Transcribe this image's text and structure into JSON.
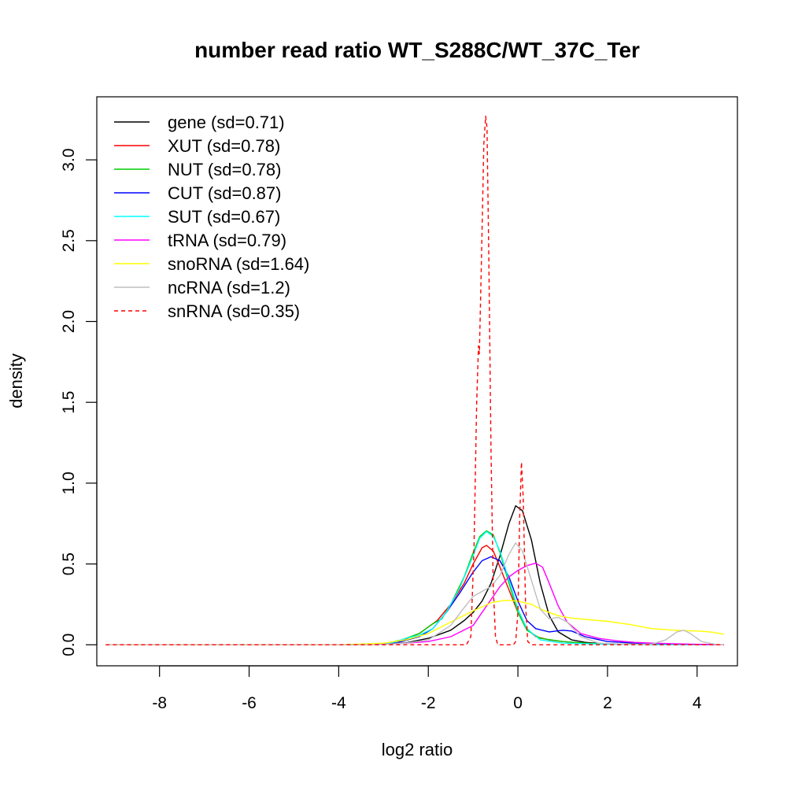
{
  "chart_data": {
    "type": "line",
    "title": "number read ratio WT_S288C/WT_37C_Ter",
    "xlabel": "log2 ratio",
    "ylabel": "density",
    "xlim": [
      -9.4,
      4.9
    ],
    "ylim": [
      -0.13,
      3.39
    ],
    "x_ticks": [
      {
        "value": -8,
        "label": "-8"
      },
      {
        "value": -6,
        "label": "-6"
      },
      {
        "value": -4,
        "label": "-4"
      },
      {
        "value": -2,
        "label": "-2"
      },
      {
        "value": 0,
        "label": "0"
      },
      {
        "value": 2,
        "label": "2"
      },
      {
        "value": 4,
        "label": "4"
      }
    ],
    "y_ticks": [
      {
        "value": 0.0,
        "label": "0.0"
      },
      {
        "value": 0.5,
        "label": "0.5"
      },
      {
        "value": 1.0,
        "label": "1.0"
      },
      {
        "value": 1.5,
        "label": "1.5"
      },
      {
        "value": 2.0,
        "label": "2.0"
      },
      {
        "value": 2.5,
        "label": "2.5"
      },
      {
        "value": 3.0,
        "label": "3.0"
      }
    ],
    "legend_position": "top-left",
    "series": [
      {
        "name": "gene (sd=0.71)",
        "color": "#000000",
        "dashed": false,
        "points": [
          [
            -9.2,
            0
          ],
          [
            -4,
            0
          ],
          [
            -3,
            0.003
          ],
          [
            -2.5,
            0.012
          ],
          [
            -2,
            0.04
          ],
          [
            -1.5,
            0.09
          ],
          [
            -1.2,
            0.15
          ],
          [
            -1.0,
            0.2
          ],
          [
            -0.8,
            0.27
          ],
          [
            -0.6,
            0.38
          ],
          [
            -0.4,
            0.55
          ],
          [
            -0.2,
            0.75
          ],
          [
            -0.05,
            0.86
          ],
          [
            0.1,
            0.83
          ],
          [
            0.3,
            0.65
          ],
          [
            0.5,
            0.38
          ],
          [
            0.7,
            0.18
          ],
          [
            0.9,
            0.08
          ],
          [
            1.2,
            0.03
          ],
          [
            1.5,
            0.015
          ],
          [
            2,
            0.005
          ],
          [
            3,
            0.002
          ],
          [
            4.6,
            0
          ]
        ]
      },
      {
        "name": "XUT (sd=0.78)",
        "color": "#ff0000",
        "dashed": false,
        "points": [
          [
            -9.2,
            0
          ],
          [
            -4,
            0
          ],
          [
            -3,
            0.005
          ],
          [
            -2.6,
            0.025
          ],
          [
            -2.2,
            0.07
          ],
          [
            -1.8,
            0.15
          ],
          [
            -1.5,
            0.25
          ],
          [
            -1.2,
            0.38
          ],
          [
            -1.0,
            0.5
          ],
          [
            -0.8,
            0.6
          ],
          [
            -0.7,
            0.615
          ],
          [
            -0.55,
            0.58
          ],
          [
            -0.4,
            0.48
          ],
          [
            -0.2,
            0.34
          ],
          [
            0,
            0.2
          ],
          [
            0.2,
            0.1
          ],
          [
            0.4,
            0.05
          ],
          [
            0.7,
            0.03
          ],
          [
            1.0,
            0.02
          ],
          [
            1.5,
            0.01
          ],
          [
            2,
            0.005
          ],
          [
            4.6,
            0
          ]
        ]
      },
      {
        "name": "NUT (sd=0.78)",
        "color": "#00cd00",
        "dashed": false,
        "points": [
          [
            -9.2,
            0
          ],
          [
            -4,
            0
          ],
          [
            -3,
            0.005
          ],
          [
            -2.6,
            0.03
          ],
          [
            -2.2,
            0.07
          ],
          [
            -1.9,
            0.13
          ],
          [
            -1.7,
            0.16
          ],
          [
            -1.5,
            0.25
          ],
          [
            -1.2,
            0.42
          ],
          [
            -1.0,
            0.57
          ],
          [
            -0.85,
            0.67
          ],
          [
            -0.7,
            0.705
          ],
          [
            -0.55,
            0.68
          ],
          [
            -0.4,
            0.57
          ],
          [
            -0.2,
            0.38
          ],
          [
            0,
            0.2
          ],
          [
            0.2,
            0.09
          ],
          [
            0.5,
            0.04
          ],
          [
            1.0,
            0.02
          ],
          [
            1.5,
            0.01
          ],
          [
            2,
            0.005
          ],
          [
            4.6,
            0
          ]
        ]
      },
      {
        "name": "CUT (sd=0.87)",
        "color": "#0000ff",
        "dashed": false,
        "points": [
          [
            -9.2,
            0
          ],
          [
            -4,
            0
          ],
          [
            -3,
            0.005
          ],
          [
            -2.6,
            0.02
          ],
          [
            -2.2,
            0.05
          ],
          [
            -1.9,
            0.1
          ],
          [
            -1.6,
            0.2
          ],
          [
            -1.3,
            0.32
          ],
          [
            -1.0,
            0.45
          ],
          [
            -0.8,
            0.52
          ],
          [
            -0.6,
            0.545
          ],
          [
            -0.4,
            0.52
          ],
          [
            -0.2,
            0.42
          ],
          [
            0,
            0.27
          ],
          [
            0.2,
            0.15
          ],
          [
            0.4,
            0.1
          ],
          [
            0.7,
            0.08
          ],
          [
            1.0,
            0.09
          ],
          [
            1.2,
            0.085
          ],
          [
            1.5,
            0.05
          ],
          [
            2,
            0.02
          ],
          [
            3,
            0.005
          ],
          [
            4.6,
            0
          ]
        ]
      },
      {
        "name": "SUT (sd=0.67)",
        "color": "#00ffff",
        "dashed": false,
        "points": [
          [
            -9.2,
            0
          ],
          [
            -4,
            0
          ],
          [
            -3,
            0.005
          ],
          [
            -2.7,
            0.02
          ],
          [
            -2.5,
            0.04
          ],
          [
            -2.2,
            0.06
          ],
          [
            -1.9,
            0.1
          ],
          [
            -1.6,
            0.2
          ],
          [
            -1.3,
            0.35
          ],
          [
            -1.0,
            0.55
          ],
          [
            -0.85,
            0.66
          ],
          [
            -0.7,
            0.7
          ],
          [
            -0.55,
            0.67
          ],
          [
            -0.4,
            0.58
          ],
          [
            -0.2,
            0.4
          ],
          [
            0,
            0.22
          ],
          [
            0.2,
            0.1
          ],
          [
            0.5,
            0.03
          ],
          [
            1.0,
            0.01
          ],
          [
            2,
            0.003
          ],
          [
            4.6,
            0
          ]
        ]
      },
      {
        "name": "tRNA (sd=0.79)",
        "color": "#ff00ff",
        "dashed": false,
        "points": [
          [
            -9.2,
            0
          ],
          [
            -4,
            0
          ],
          [
            -3,
            0.003
          ],
          [
            -2.5,
            0.01
          ],
          [
            -2,
            0.02
          ],
          [
            -1.5,
            0.05
          ],
          [
            -1.0,
            0.12
          ],
          [
            -0.8,
            0.2
          ],
          [
            -0.6,
            0.28
          ],
          [
            -0.4,
            0.36
          ],
          [
            -0.2,
            0.42
          ],
          [
            0,
            0.46
          ],
          [
            0.2,
            0.49
          ],
          [
            0.4,
            0.505
          ],
          [
            0.55,
            0.48
          ],
          [
            0.7,
            0.38
          ],
          [
            0.9,
            0.24
          ],
          [
            1.1,
            0.14
          ],
          [
            1.4,
            0.07
          ],
          [
            1.8,
            0.04
          ],
          [
            2.2,
            0.025
          ],
          [
            2.6,
            0.015
          ],
          [
            3,
            0.01
          ],
          [
            4,
            0.003
          ],
          [
            4.6,
            0
          ]
        ]
      },
      {
        "name": "snoRNA (sd=1.64)",
        "color": "#ffff00",
        "dashed": false,
        "points": [
          [
            -9.2,
            0
          ],
          [
            -4,
            0
          ],
          [
            -3,
            0.01
          ],
          [
            -2.5,
            0.03
          ],
          [
            -2,
            0.07
          ],
          [
            -1.5,
            0.14
          ],
          [
            -1.0,
            0.21
          ],
          [
            -0.6,
            0.26
          ],
          [
            -0.3,
            0.275
          ],
          [
            0,
            0.27
          ],
          [
            0.3,
            0.25
          ],
          [
            0.6,
            0.21
          ],
          [
            0.9,
            0.18
          ],
          [
            1.2,
            0.165
          ],
          [
            1.6,
            0.155
          ],
          [
            2,
            0.145
          ],
          [
            2.5,
            0.125
          ],
          [
            3,
            0.1
          ],
          [
            3.5,
            0.09
          ],
          [
            4,
            0.085
          ],
          [
            4.3,
            0.08
          ],
          [
            4.6,
            0.065
          ]
        ]
      },
      {
        "name": "ncRNA (sd=1.2)",
        "color": "#bebebe",
        "dashed": false,
        "points": [
          [
            -9.2,
            0
          ],
          [
            -4,
            0
          ],
          [
            -3,
            0.002
          ],
          [
            -2.5,
            0.01
          ],
          [
            -2,
            0.03
          ],
          [
            -1.5,
            0.12
          ],
          [
            -1.2,
            0.23
          ],
          [
            -1.0,
            0.3
          ],
          [
            -0.8,
            0.33
          ],
          [
            -0.6,
            0.36
          ],
          [
            -0.4,
            0.43
          ],
          [
            -0.2,
            0.56
          ],
          [
            -0.05,
            0.63
          ],
          [
            0.1,
            0.58
          ],
          [
            0.3,
            0.4
          ],
          [
            0.5,
            0.22
          ],
          [
            0.7,
            0.16
          ],
          [
            0.9,
            0.17
          ],
          [
            1.1,
            0.14
          ],
          [
            1.4,
            0.05
          ],
          [
            1.8,
            0.01
          ],
          [
            2.5,
            0.003
          ],
          [
            3.0,
            0.005
          ],
          [
            3.3,
            0.03
          ],
          [
            3.55,
            0.08
          ],
          [
            3.7,
            0.09
          ],
          [
            3.85,
            0.07
          ],
          [
            4.1,
            0.02
          ],
          [
            4.4,
            0.003
          ],
          [
            4.6,
            0
          ]
        ]
      },
      {
        "name": "snRNA (sd=0.35)",
        "color": "#ff0000",
        "dashed": true,
        "points": [
          [
            -9.2,
            0
          ],
          [
            -1.15,
            0
          ],
          [
            -1.05,
            0.05
          ],
          [
            -0.98,
            0.6
          ],
          [
            -0.92,
            1.5
          ],
          [
            -0.88,
            1.85
          ],
          [
            -0.86,
            1.8
          ],
          [
            -0.82,
            2.3
          ],
          [
            -0.76,
            3.1
          ],
          [
            -0.72,
            3.27
          ],
          [
            -0.69,
            3.2
          ],
          [
            -0.65,
            2.4
          ],
          [
            -0.6,
            1.2
          ],
          [
            -0.55,
            0.35
          ],
          [
            -0.5,
            0.05
          ],
          [
            -0.45,
            0
          ],
          [
            -0.1,
            0
          ],
          [
            -0.05,
            0.02
          ],
          [
            0,
            0.2
          ],
          [
            0.04,
            0.8
          ],
          [
            0.08,
            1.13
          ],
          [
            0.12,
            0.9
          ],
          [
            0.17,
            0.25
          ],
          [
            0.22,
            0.02
          ],
          [
            0.3,
            0
          ],
          [
            4.6,
            0
          ]
        ]
      }
    ]
  }
}
